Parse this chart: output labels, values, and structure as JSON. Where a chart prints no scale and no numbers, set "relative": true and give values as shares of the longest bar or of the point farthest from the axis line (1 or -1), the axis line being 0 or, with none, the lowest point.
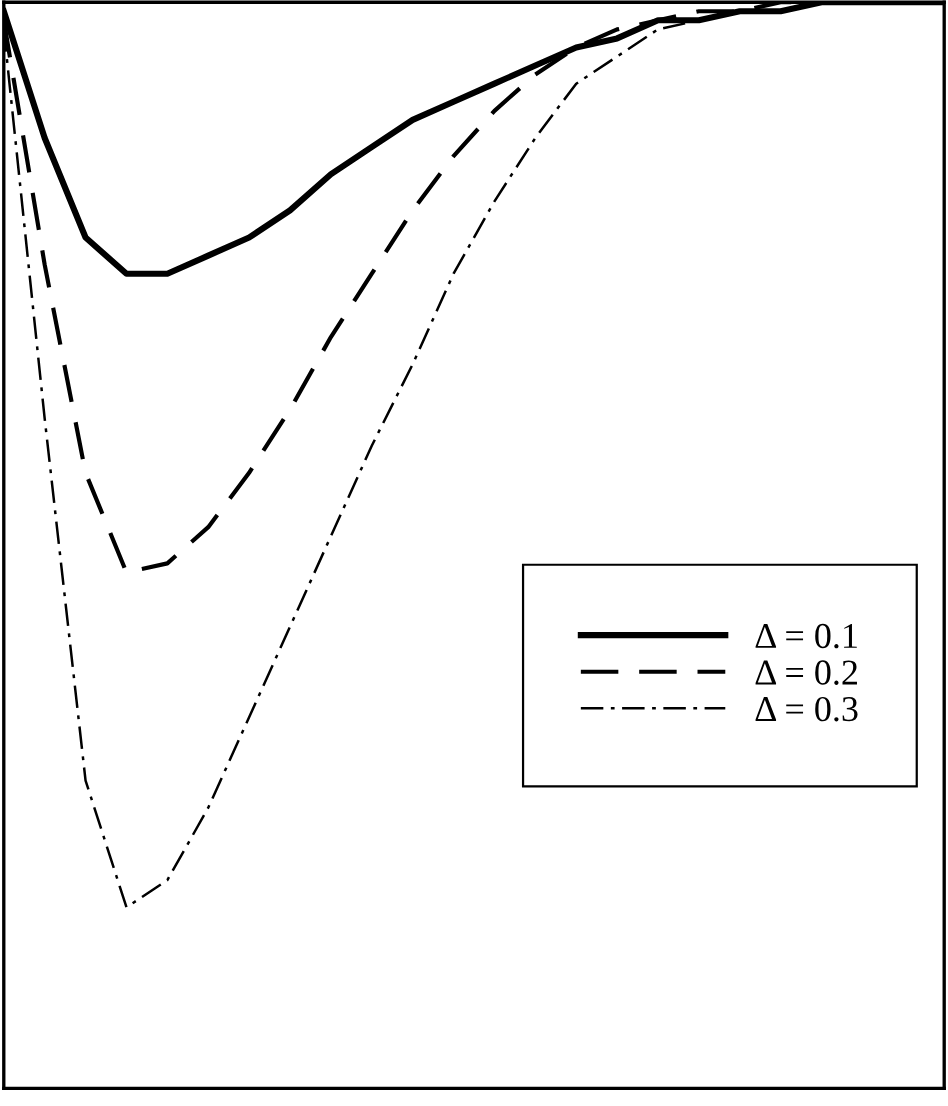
{
  "chart_data": {
    "type": "line",
    "relative": true,
    "categories": [
      null,
      null,
      null,
      null,
      null,
      null,
      null,
      null,
      null,
      null,
      null,
      null,
      null,
      null,
      null,
      null,
      null,
      null,
      null,
      null,
      null,
      null,
      null,
      null
    ],
    "series": [
      {
        "name": "Δ = 0.1",
        "color": "#000000",
        "line_style": "solid",
        "values": [
          -0.01,
          -0.15,
          -0.26,
          -0.3,
          -0.3,
          -0.28,
          -0.26,
          -0.23,
          -0.19,
          -0.16,
          -0.13,
          -0.11,
          -0.09,
          -0.07,
          -0.05,
          -0.04,
          -0.02,
          -0.02,
          -0.01,
          -0.01,
          0,
          0,
          0,
          0
        ]
      },
      {
        "name": "Δ = 0.2",
        "color": "#000000",
        "line_style": "dashed",
        "values": [
          -0.02,
          -0.29,
          -0.52,
          -0.63,
          -0.62,
          -0.58,
          -0.52,
          -0.45,
          -0.37,
          -0.3,
          -0.23,
          -0.17,
          -0.12,
          -0.08,
          -0.05,
          -0.03,
          -0.02,
          -0.01,
          -0.01,
          0,
          0,
          0,
          0,
          0
        ]
      },
      {
        "name": "Δ = 0.3",
        "color": "#000000",
        "line_style": "dashdot",
        "values": [
          -0.03,
          -0.46,
          -0.86,
          -1.0,
          -0.97,
          -0.89,
          -0.79,
          -0.69,
          -0.59,
          -0.49,
          -0.4,
          -0.3,
          -0.22,
          -0.15,
          -0.09,
          -0.06,
          -0.03,
          -0.02,
          -0.01,
          -0.01,
          0,
          0,
          0,
          0
        ]
      }
    ],
    "legend": "right",
    "grid": false,
    "marker": "none"
  }
}
